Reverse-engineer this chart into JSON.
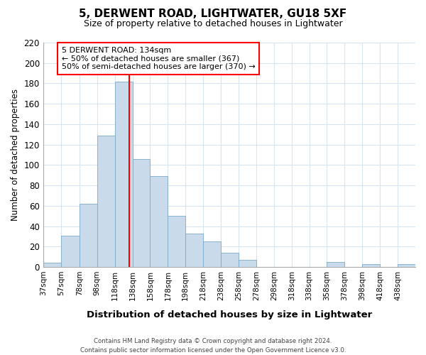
{
  "title": "5, DERWENT ROAD, LIGHTWATER, GU18 5XF",
  "subtitle": "Size of property relative to detached houses in Lightwater",
  "xlabel": "Distribution of detached houses by size in Lightwater",
  "ylabel": "Number of detached properties",
  "bin_labels": [
    "37sqm",
    "57sqm",
    "78sqm",
    "98sqm",
    "118sqm",
    "138sqm",
    "158sqm",
    "178sqm",
    "198sqm",
    "218sqm",
    "238sqm",
    "258sqm",
    "278sqm",
    "298sqm",
    "318sqm",
    "338sqm",
    "358sqm",
    "378sqm",
    "398sqm",
    "418sqm",
    "438sqm"
  ],
  "bar_values": [
    4,
    31,
    62,
    129,
    182,
    106,
    89,
    50,
    33,
    25,
    14,
    7,
    0,
    0,
    0,
    0,
    5,
    0,
    3,
    0,
    3
  ],
  "bar_color": "#c9daea",
  "bar_edge_color": "#7aaac8",
  "vline_x": 134,
  "vline_color": "red",
  "annotation_text": "5 DERWENT ROAD: 134sqm\n← 50% of detached houses are smaller (367)\n50% of semi-detached houses are larger (370) →",
  "annotation_box_color": "white",
  "annotation_box_edge_color": "red",
  "ylim": [
    0,
    220
  ],
  "yticks": [
    0,
    20,
    40,
    60,
    80,
    100,
    120,
    140,
    160,
    180,
    200,
    220
  ],
  "footer": "Contains HM Land Registry data © Crown copyright and database right 2024.\nContains public sector information licensed under the Open Government Licence v3.0.",
  "bg_color": "#ffffff",
  "plot_bg_color": "#ffffff",
  "grid_color": "#d8e4f0",
  "bin_edges": [
    37,
    57,
    78,
    98,
    118,
    138,
    158,
    178,
    198,
    218,
    238,
    258,
    278,
    298,
    318,
    338,
    358,
    378,
    398,
    418,
    438,
    458
  ]
}
